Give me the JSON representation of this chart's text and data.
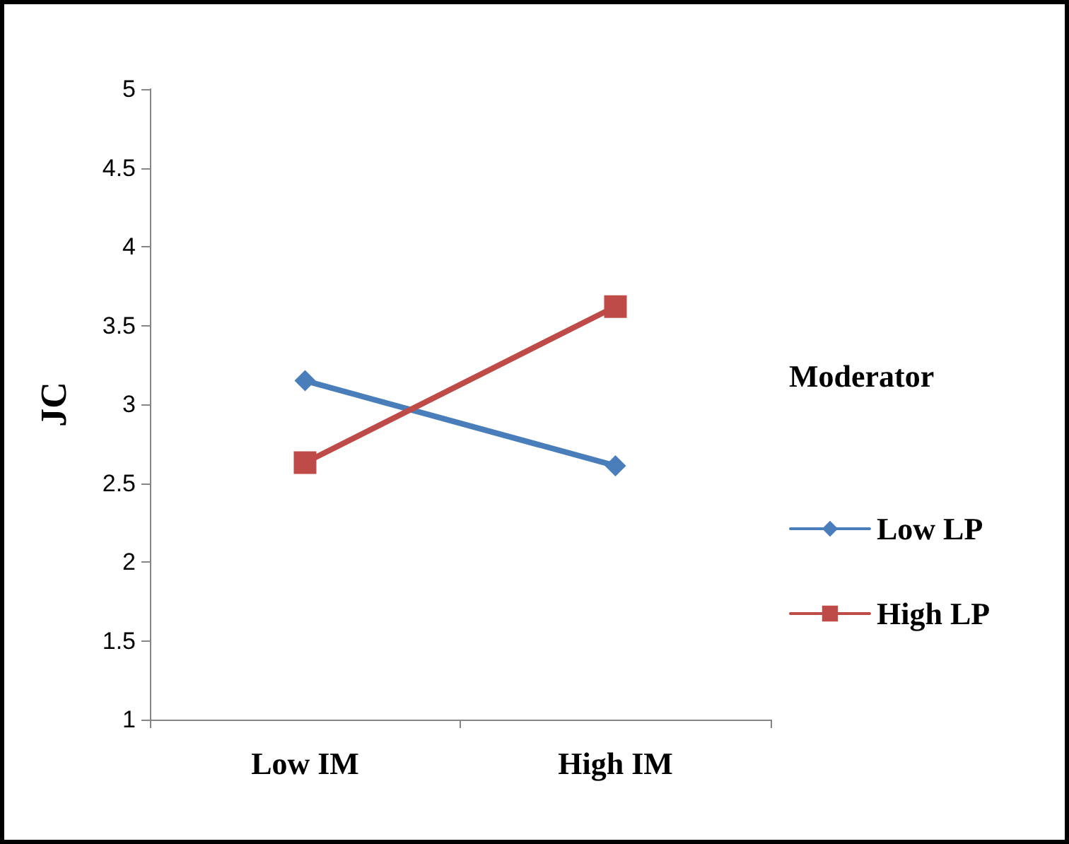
{
  "chart_data": {
    "type": "line",
    "ylabel": "JC",
    "legend_title": "Moderator",
    "categories": [
      "Low IM",
      "High IM"
    ],
    "series": [
      {
        "name": "Low LP",
        "color": "#4a7ebb",
        "marker": "diamond",
        "values": [
          3.15,
          2.61
        ]
      },
      {
        "name": "High LP",
        "color": "#be4b48",
        "marker": "square",
        "values": [
          2.63,
          3.62
        ]
      }
    ],
    "ylim": [
      1,
      5
    ],
    "yticks": [
      1,
      1.5,
      2,
      2.5,
      3,
      3.5,
      4,
      4.5,
      5
    ],
    "grid": false,
    "legend": "right"
  }
}
